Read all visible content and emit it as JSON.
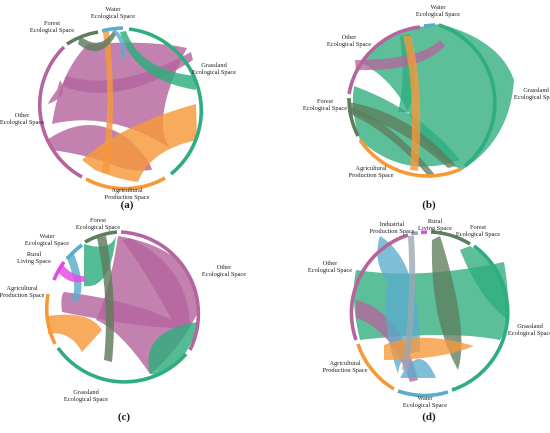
{
  "colors": {
    "forest": "#5e7d5c",
    "water": "#5aaccb",
    "grassland": "#2ead7d",
    "other": "#b5659e",
    "agricultural": "#f69939",
    "rural": "#e449e0",
    "industrial": "#9aa7b4"
  },
  "panels": [
    {
      "id": "a",
      "label": "(a)",
      "arcs": [
        {
          "key": "grassland",
          "name": "Grassland Ecological Space"
        },
        {
          "key": "agricultural",
          "name": "Agricultural Production Space"
        },
        {
          "key": "other",
          "name": "Other Ecological Space"
        },
        {
          "key": "forest",
          "name": "Forest Ecological Space"
        },
        {
          "key": "water",
          "name": "Water Ecological Space"
        }
      ]
    },
    {
      "id": "b",
      "label": "(b)",
      "arcs": [
        {
          "key": "grassland",
          "name": "Grassland Ecological Space"
        },
        {
          "key": "agricultural",
          "name": "Agricultural Production Space"
        },
        {
          "key": "forest",
          "name": "Forest Ecological Space"
        },
        {
          "key": "other",
          "name": "Other Ecological Space"
        },
        {
          "key": "water",
          "name": "Water Ecological Space"
        }
      ]
    },
    {
      "id": "c",
      "label": "(c)",
      "arcs": [
        {
          "key": "other",
          "name": "Other Ecological Space"
        },
        {
          "key": "grassland",
          "name": "Grassland Ecological Space"
        },
        {
          "key": "agricultural",
          "name": "Agricultural Production Space"
        },
        {
          "key": "rural",
          "name": "Rural Living Space"
        },
        {
          "key": "water",
          "name": "Water Ecological Space"
        },
        {
          "key": "forest",
          "name": "Forest Ecological Space"
        }
      ]
    },
    {
      "id": "d",
      "label": "(d)",
      "arcs": [
        {
          "key": "forest",
          "name": "Forest Ecological Space"
        },
        {
          "key": "grassland",
          "name": "Grassland Ecological Space"
        },
        {
          "key": "water",
          "name": "Water Ecological Space"
        },
        {
          "key": "agricultural",
          "name": "Agricultural Production Space"
        },
        {
          "key": "other",
          "name": "Other Ecological Space"
        },
        {
          "key": "industrial",
          "name": "Industrial Production Space"
        },
        {
          "key": "rural",
          "name": "Rural Living Space"
        }
      ]
    }
  ]
}
